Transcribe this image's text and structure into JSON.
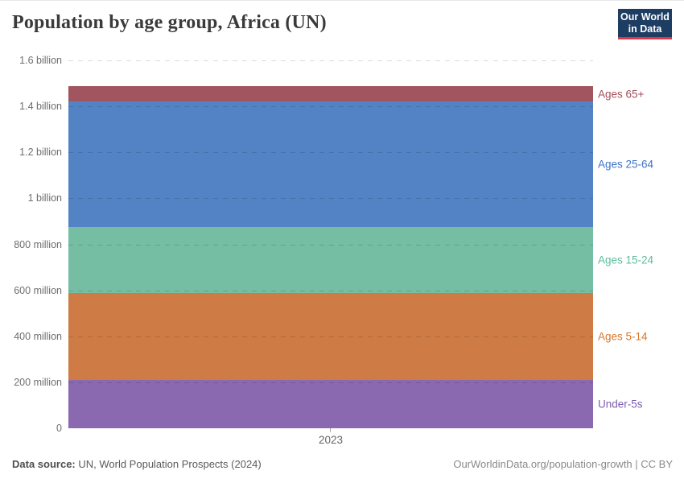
{
  "header": {
    "title": "Population by age group, Africa (UN)",
    "logo": {
      "line1": "Our World",
      "line2": "in Data",
      "bg_color": "#1d3d63",
      "accent_color": "#e0364a"
    }
  },
  "chart_data": {
    "type": "area",
    "stacked": true,
    "title": "Population by age group, Africa (UN)",
    "x": [
      "2023"
    ],
    "x_tick_label": "2023",
    "ylabel": "",
    "xlabel": "",
    "unit": "people",
    "ylim_millions": [
      0,
      1600
    ],
    "grid": "dashed horizontal",
    "legend_position": "right inline labels",
    "total_millions": 1487,
    "y_ticks": [
      {
        "value_millions": 0,
        "label": "0"
      },
      {
        "value_millions": 200,
        "label": "200 million"
      },
      {
        "value_millions": 400,
        "label": "400 million"
      },
      {
        "value_millions": 600,
        "label": "600 million"
      },
      {
        "value_millions": 800,
        "label": "800 million"
      },
      {
        "value_millions": 1000,
        "label": "1 billion"
      },
      {
        "value_millions": 1200,
        "label": "1.2 billion"
      },
      {
        "value_millions": 1400,
        "label": "1.4 billion"
      },
      {
        "value_millions": 1600,
        "label": "1.6 billion"
      }
    ],
    "series": [
      {
        "name": "Under-5s",
        "value_millions": 210,
        "color": "#8a69b1",
        "label_color": "#7d5cae"
      },
      {
        "name": "Ages 5-14",
        "value_millions": 378,
        "color": "#ce7b45",
        "label_color": "#d6782e"
      },
      {
        "name": "Ages 15-24",
        "value_millions": 287,
        "color": "#75bda3",
        "label_color": "#5fbb9c"
      },
      {
        "name": "Ages 25-64",
        "value_millions": 546,
        "color": "#5383c5",
        "label_color": "#3d74c7"
      },
      {
        "name": "Ages 65+",
        "value_millions": 66,
        "color": "#a1565f",
        "label_color": "#a24e5a"
      }
    ]
  },
  "footer": {
    "source_label": "Data source:",
    "source_text": " UN, World Population Prospects (2024)",
    "link": "OurWorldinData.org/population-growth | CC BY"
  }
}
